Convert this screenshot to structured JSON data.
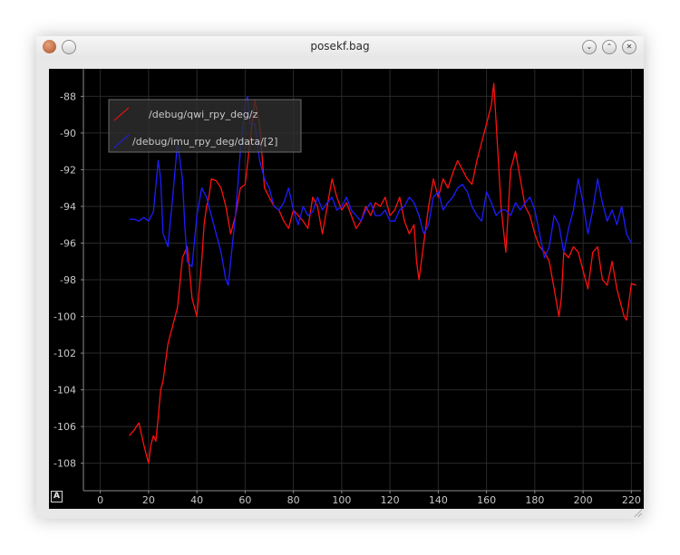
{
  "window": {
    "title": "posekf.bag"
  },
  "titlebar_buttons": [
    {
      "name": "minimize-button",
      "icon": "chevron-down-icon",
      "glyph": "⌄"
    },
    {
      "name": "maximize-button",
      "icon": "chevron-up-icon",
      "glyph": "⌃"
    },
    {
      "name": "close-button",
      "icon": "close-icon",
      "glyph": "✕"
    }
  ],
  "plot": {
    "autoscale_label": "A"
  },
  "chart_data": {
    "type": "line",
    "title": "",
    "xlabel": "",
    "ylabel": "",
    "xlim": [
      -7,
      224
    ],
    "ylim": [
      -109.5,
      -86.5
    ],
    "grid": true,
    "background": "#000000",
    "legend_position": "top-left",
    "x_ticks": [
      0,
      20,
      40,
      60,
      80,
      100,
      120,
      140,
      160,
      180,
      200,
      220
    ],
    "y_ticks": [
      -88,
      -90,
      -92,
      -94,
      -96,
      -98,
      -100,
      -102,
      -104,
      -106,
      -108
    ],
    "series": [
      {
        "name": "/debug/qwi_rpy_deg/z",
        "color": "#ff1010",
        "x": [
          12,
          14,
          16,
          18,
          19,
          20,
          21,
          22,
          23,
          24,
          25,
          26,
          28,
          30,
          32,
          34,
          35,
          36,
          37,
          38,
          40,
          42,
          43,
          44,
          45,
          46,
          48,
          50,
          52,
          54,
          56,
          58,
          60,
          62,
          64,
          66,
          68,
          70,
          72,
          74,
          76,
          78,
          80,
          82,
          84,
          86,
          88,
          90,
          92,
          94,
          96,
          98,
          100,
          102,
          104,
          106,
          108,
          110,
          112,
          114,
          116,
          118,
          120,
          122,
          124,
          126,
          128,
          130,
          131,
          132,
          134,
          136,
          138,
          140,
          142,
          144,
          146,
          148,
          150,
          152,
          154,
          156,
          158,
          160,
          162,
          163,
          164,
          166,
          168,
          170,
          172,
          174,
          176,
          178,
          180,
          182,
          184,
          186,
          188,
          190,
          191,
          192,
          194,
          196,
          198,
          200,
          202,
          204,
          206,
          208,
          210,
          212,
          214,
          216,
          217,
          218,
          220,
          222
        ],
        "values": [
          -106.5,
          -106.2,
          -105.8,
          -107,
          -107.5,
          -108,
          -107,
          -106.5,
          -106.8,
          -105.5,
          -104,
          -103.5,
          -101.5,
          -100.5,
          -99.5,
          -96.8,
          -96.5,
          -96.2,
          -97.5,
          -99,
          -100,
          -97,
          -95,
          -94,
          -93.5,
          -92.5,
          -92.6,
          -93,
          -94,
          -95.5,
          -94.5,
          -93,
          -92.8,
          -90.5,
          -88.2,
          -89.5,
          -93,
          -93.5,
          -94,
          -94.2,
          -94.8,
          -95.2,
          -94.2,
          -94.5,
          -94.8,
          -95.2,
          -93.5,
          -94,
          -95.5,
          -94,
          -92.5,
          -93.5,
          -94.2,
          -93.8,
          -94.5,
          -95.2,
          -94.8,
          -94,
          -94.5,
          -93.8,
          -94,
          -93.5,
          -94.5,
          -94.2,
          -93.5,
          -94.8,
          -95.5,
          -95,
          -97,
          -98,
          -96,
          -94,
          -92.5,
          -93.5,
          -92.5,
          -93,
          -92.2,
          -91.5,
          -92,
          -92.5,
          -92.8,
          -91.5,
          -90.5,
          -89.5,
          -88.5,
          -87.3,
          -89.5,
          -94,
          -96.5,
          -92,
          -91,
          -92.5,
          -94,
          -94.5,
          -95.5,
          -96.2,
          -96.5,
          -97,
          -98.5,
          -100,
          -99,
          -96.5,
          -96.8,
          -96.2,
          -96.5,
          -97.5,
          -98.5,
          -96.5,
          -96.2,
          -98,
          -98.3,
          -97,
          -98.5,
          -99.5,
          -100,
          -100.2,
          -98.2,
          -98.3
        ]
      },
      {
        "name": "/debug/imu_rpy_deg/data/[2]",
        "color": "#1d1dff",
        "x": [
          12,
          14,
          16,
          18,
          20,
          22,
          24,
          25,
          26,
          28,
          30,
          32,
          34,
          35,
          36,
          38,
          40,
          42,
          44,
          46,
          48,
          50,
          52,
          53,
          54,
          56,
          58,
          60,
          61,
          62,
          64,
          66,
          68,
          70,
          72,
          74,
          76,
          78,
          80,
          82,
          84,
          86,
          88,
          90,
          92,
          94,
          96,
          98,
          100,
          102,
          104,
          106,
          108,
          110,
          112,
          114,
          116,
          118,
          120,
          122,
          124,
          126,
          128,
          130,
          132,
          134,
          136,
          138,
          140,
          142,
          144,
          146,
          148,
          150,
          152,
          154,
          156,
          158,
          160,
          162,
          164,
          166,
          168,
          170,
          172,
          174,
          176,
          178,
          180,
          182,
          184,
          186,
          188,
          190,
          192,
          194,
          196,
          198,
          200,
          202,
          204,
          206,
          208,
          210,
          212,
          214,
          216,
          218,
          220
        ],
        "values": [
          -94.7,
          -94.7,
          -94.8,
          -94.6,
          -94.8,
          -94.3,
          -91.5,
          -92.5,
          -95.5,
          -96.2,
          -93.5,
          -90.5,
          -92.5,
          -95,
          -97,
          -97.3,
          -94.5,
          -93,
          -93.5,
          -94.5,
          -95.5,
          -96.5,
          -98,
          -98.3,
          -97,
          -94.5,
          -91,
          -88.5,
          -88,
          -89.5,
          -89.5,
          -91.5,
          -92.5,
          -93,
          -94,
          -94.2,
          -93.8,
          -93,
          -94.2,
          -95,
          -94,
          -94.5,
          -94.3,
          -93.5,
          -94.2,
          -93.8,
          -93.5,
          -94.2,
          -94,
          -93.5,
          -94.2,
          -94.5,
          -94.8,
          -94.2,
          -93.8,
          -94.5,
          -94.5,
          -94.2,
          -94.8,
          -94.8,
          -94.2,
          -94,
          -93.5,
          -93.8,
          -94.5,
          -95.5,
          -95,
          -93.5,
          -93.2,
          -94.2,
          -93.8,
          -93.5,
          -93,
          -92.8,
          -93.2,
          -94,
          -94.5,
          -94.8,
          -93.2,
          -93.8,
          -94.5,
          -94.2,
          -94.2,
          -94.5,
          -93.8,
          -94.2,
          -93.8,
          -93.5,
          -94.2,
          -95.5,
          -96.8,
          -96.2,
          -94.5,
          -95,
          -96.5,
          -95.2,
          -94.2,
          -92.5,
          -93.8,
          -95.5,
          -94.2,
          -92.5,
          -93.8,
          -94.8,
          -94.2,
          -95,
          -94,
          -95.5,
          -96
        ]
      }
    ]
  }
}
